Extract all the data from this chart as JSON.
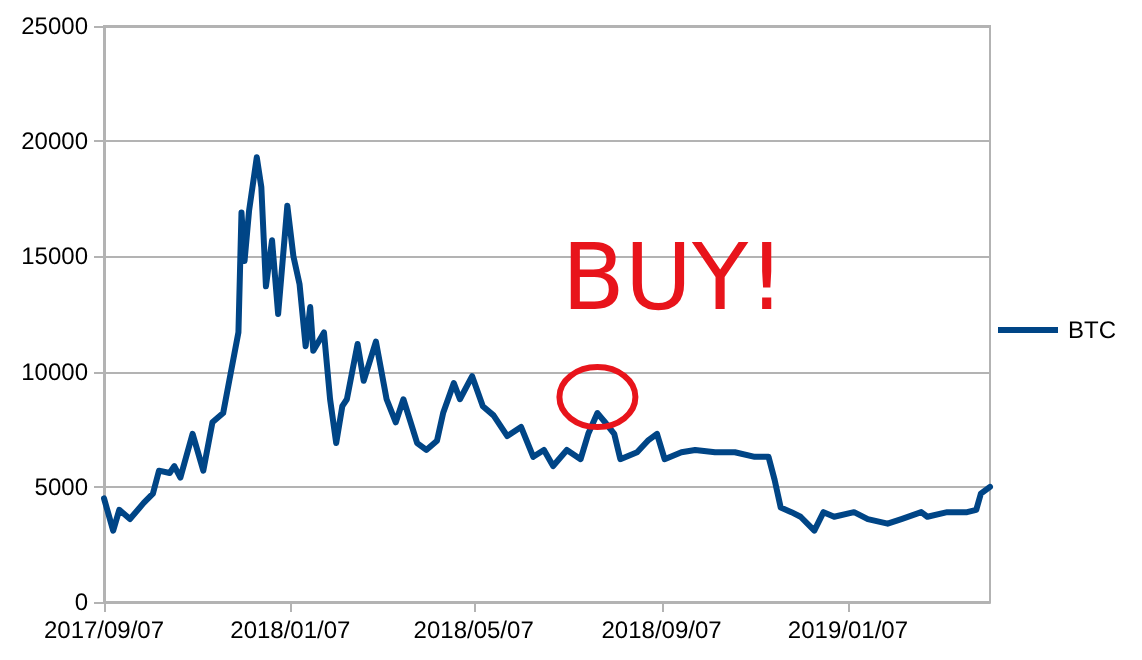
{
  "chart_data": {
    "type": "line",
    "legend": "right",
    "grid": "y",
    "marker": "none",
    "line_style": "solid",
    "xlim": [
      "2017-09-07",
      "2019-04-10"
    ],
    "xticks": [
      {
        "value": "2017-09-07",
        "label": "2017/09/07"
      },
      {
        "value": "2018-01-07",
        "label": "2018/01/07"
      },
      {
        "value": "2018-05-07",
        "label": "2018/05/07"
      },
      {
        "value": "2018-09-07",
        "label": "2018/09/07"
      },
      {
        "value": "2019-01-07",
        "label": "2019/01/07"
      }
    ],
    "ylim": [
      0,
      25000
    ],
    "yticks": [
      0,
      5000,
      10000,
      15000,
      20000,
      25000
    ],
    "annotations": [
      {
        "text": "BUY!",
        "x": "2018-07-27",
        "y": 8200
      }
    ],
    "series": [
      {
        "name": "BTC",
        "color": "#004586",
        "x": [
          "2017-09-07",
          "2017-09-13",
          "2017-09-17",
          "2017-09-24",
          "2017-10-03",
          "2017-10-09",
          "2017-10-13",
          "2017-10-20",
          "2017-10-23",
          "2017-10-27",
          "2017-11-04",
          "2017-11-11",
          "2017-11-17",
          "2017-11-24",
          "2017-11-28",
          "2017-12-04",
          "2017-12-06",
          "2017-12-08",
          "2017-12-11",
          "2017-12-16",
          "2017-12-19",
          "2017-12-22",
          "2017-12-26",
          "2017-12-30",
          "2018-01-05",
          "2018-01-09",
          "2018-01-13",
          "2018-01-17",
          "2018-01-20",
          "2018-01-22",
          "2018-01-29",
          "2018-02-02",
          "2018-02-06",
          "2018-02-10",
          "2018-02-13",
          "2018-02-20",
          "2018-02-24",
          "2018-03-04",
          "2018-03-11",
          "2018-03-17",
          "2018-03-22",
          "2018-03-31",
          "2018-04-06",
          "2018-04-13",
          "2018-04-17",
          "2018-04-24",
          "2018-04-28",
          "2018-05-06",
          "2018-05-13",
          "2018-05-20",
          "2018-05-29",
          "2018-06-07",
          "2018-06-15",
          "2018-06-22",
          "2018-06-28",
          "2018-07-07",
          "2018-07-16",
          "2018-07-21",
          "2018-07-27",
          "2018-08-01",
          "2018-08-07",
          "2018-08-11",
          "2018-08-22",
          "2018-08-29",
          "2018-09-04",
          "2018-09-09",
          "2018-09-20",
          "2018-09-29",
          "2018-10-12",
          "2018-10-25",
          "2018-11-07",
          "2018-11-16",
          "2018-11-20",
          "2018-11-24",
          "2018-12-01",
          "2018-12-07",
          "2018-12-16",
          "2018-12-22",
          "2018-12-29",
          "2019-01-11",
          "2019-01-20",
          "2019-02-02",
          "2019-02-11",
          "2019-02-24",
          "2019-02-28",
          "2019-03-13",
          "2019-03-26",
          "2019-04-01",
          "2019-04-04",
          "2019-04-10"
        ],
        "values": [
          4500,
          3100,
          4000,
          3600,
          4300,
          4700,
          5700,
          5600,
          5900,
          5400,
          7300,
          5700,
          7800,
          8200,
          9600,
          11700,
          16900,
          14800,
          17000,
          19300,
          18000,
          13700,
          15700,
          12500,
          17200,
          15000,
          13800,
          11100,
          12800,
          10900,
          11700,
          8800,
          6900,
          8500,
          8800,
          11200,
          9600,
          11300,
          8800,
          7800,
          8800,
          6900,
          6600,
          7000,
          8200,
          9500,
          8800,
          9800,
          8500,
          8100,
          7200,
          7600,
          6300,
          6600,
          5900,
          6600,
          6200,
          7300,
          8200,
          7800,
          7300,
          6200,
          6500,
          7000,
          7300,
          6200,
          6500,
          6600,
          6500,
          6500,
          6300,
          6300,
          5300,
          4100,
          3900,
          3700,
          3100,
          3900,
          3700,
          3900,
          3600,
          3400,
          3600,
          3900,
          3700,
          3900,
          3900,
          4000,
          4700,
          5000
        ]
      }
    ]
  }
}
